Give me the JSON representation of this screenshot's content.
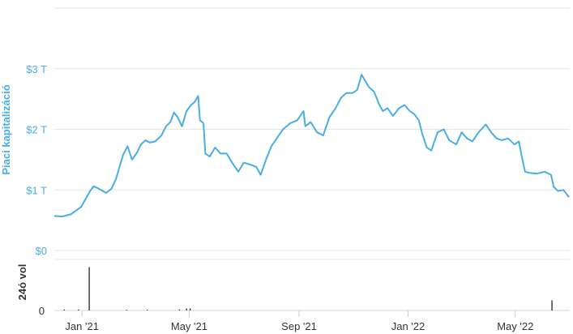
{
  "chart_data": [
    {
      "type": "line",
      "ylabel": "Piaci kapitalizáció",
      "yticks": [
        {
          "value": 0,
          "label": "$0"
        },
        {
          "value": 1,
          "label": "$1 T"
        },
        {
          "value": 2,
          "label": "$2 T"
        },
        {
          "value": 3,
          "label": "$3 T"
        }
      ],
      "ylim": [
        0,
        4
      ],
      "xlim": [
        "2020-12-01",
        "2022-07-01"
      ],
      "xticks": [
        {
          "date": "2021-01-01",
          "label": "Jan '21"
        },
        {
          "date": "2021-05-01",
          "label": "May '21"
        },
        {
          "date": "2021-09-01",
          "label": "Sep '21"
        },
        {
          "date": "2022-01-01",
          "label": "Jan '22"
        },
        {
          "date": "2022-05-01",
          "label": "May '22"
        }
      ],
      "grid": true,
      "line_color": "#4aaee3",
      "series": [
        {
          "x": [
            "2020-12-01",
            "2020-12-10",
            "2020-12-20",
            "2020-12-31",
            "2021-01-05",
            "2021-01-10",
            "2021-01-14",
            "2021-01-20",
            "2021-01-28",
            "2021-02-03",
            "2021-02-08",
            "2021-02-12",
            "2021-02-16",
            "2021-02-21",
            "2021-02-26",
            "2021-03-03",
            "2021-03-08",
            "2021-03-13",
            "2021-03-18",
            "2021-03-24",
            "2021-03-31",
            "2021-04-05",
            "2021-04-10",
            "2021-04-14",
            "2021-04-18",
            "2021-04-23",
            "2021-04-28",
            "2021-05-03",
            "2021-05-07",
            "2021-05-11",
            "2021-05-13",
            "2021-05-17",
            "2021-05-19",
            "2021-05-24",
            "2021-05-30",
            "2021-06-05",
            "2021-06-12",
            "2021-06-18",
            "2021-06-25",
            "2021-07-01",
            "2021-07-08",
            "2021-07-15",
            "2021-07-20",
            "2021-07-26",
            "2021-08-01",
            "2021-08-07",
            "2021-08-14",
            "2021-08-22",
            "2021-08-30",
            "2021-09-06",
            "2021-09-08",
            "2021-09-14",
            "2021-09-21",
            "2021-09-28",
            "2021-10-05",
            "2021-10-12",
            "2021-10-18",
            "2021-10-24",
            "2021-10-31",
            "2021-11-05",
            "2021-11-10",
            "2021-11-14",
            "2021-11-18",
            "2021-11-24",
            "2021-11-30",
            "2021-12-04",
            "2021-12-09",
            "2021-12-15",
            "2021-12-22",
            "2021-12-28",
            "2022-01-03",
            "2022-01-08",
            "2022-01-13",
            "2022-01-17",
            "2022-01-22",
            "2022-01-27",
            "2022-02-03",
            "2022-02-10",
            "2022-02-16",
            "2022-02-24",
            "2022-03-02",
            "2022-03-08",
            "2022-03-14",
            "2022-03-21",
            "2022-03-29",
            "2022-04-04",
            "2022-04-10",
            "2022-04-16",
            "2022-04-23",
            "2022-04-30",
            "2022-05-05",
            "2022-05-09",
            "2022-05-12",
            "2022-05-17",
            "2022-05-25",
            "2022-06-03",
            "2022-06-10",
            "2022-06-13",
            "2022-06-18",
            "2022-06-24",
            "2022-06-30"
          ],
          "y": [
            0.57,
            0.56,
            0.6,
            0.72,
            0.85,
            0.98,
            1.06,
            1.02,
            0.95,
            1.02,
            1.18,
            1.38,
            1.58,
            1.72,
            1.5,
            1.6,
            1.75,
            1.82,
            1.78,
            1.8,
            1.9,
            2.05,
            2.12,
            2.28,
            2.2,
            2.05,
            2.3,
            2.4,
            2.45,
            2.55,
            2.15,
            2.1,
            1.6,
            1.55,
            1.7,
            1.6,
            1.6,
            1.45,
            1.3,
            1.45,
            1.42,
            1.38,
            1.25,
            1.5,
            1.72,
            1.85,
            2.0,
            2.1,
            2.15,
            2.3,
            2.05,
            2.12,
            1.95,
            1.9,
            2.2,
            2.35,
            2.52,
            2.6,
            2.6,
            2.65,
            2.9,
            2.8,
            2.7,
            2.62,
            2.4,
            2.3,
            2.35,
            2.22,
            2.35,
            2.4,
            2.3,
            2.25,
            2.15,
            1.92,
            1.7,
            1.65,
            1.95,
            2.0,
            1.82,
            1.75,
            1.95,
            1.85,
            1.8,
            1.95,
            2.08,
            1.95,
            1.85,
            1.82,
            1.85,
            1.75,
            1.8,
            1.5,
            1.3,
            1.28,
            1.27,
            1.3,
            1.25,
            1.05,
            0.98,
            1.0,
            0.88
          ]
        }
      ]
    },
    {
      "type": "bar",
      "ylabel": "24ó vol",
      "yticks": [
        {
          "value": 0,
          "label": "0"
        }
      ],
      "ylim": [
        0,
        1
      ],
      "grid": true,
      "bar_color": "#333333",
      "series": [
        {
          "x": [
            "2021-01-09",
            "2022-06-11",
            "2020-12-12",
            "2020-12-28",
            "2021-02-20",
            "2021-03-15",
            "2021-04-20",
            "2021-04-28",
            "2021-05-02"
          ],
          "values": [
            0.85,
            0.2,
            0.02,
            0.02,
            0.015,
            0.015,
            0.02,
            0.04,
            0.04
          ]
        }
      ]
    }
  ]
}
